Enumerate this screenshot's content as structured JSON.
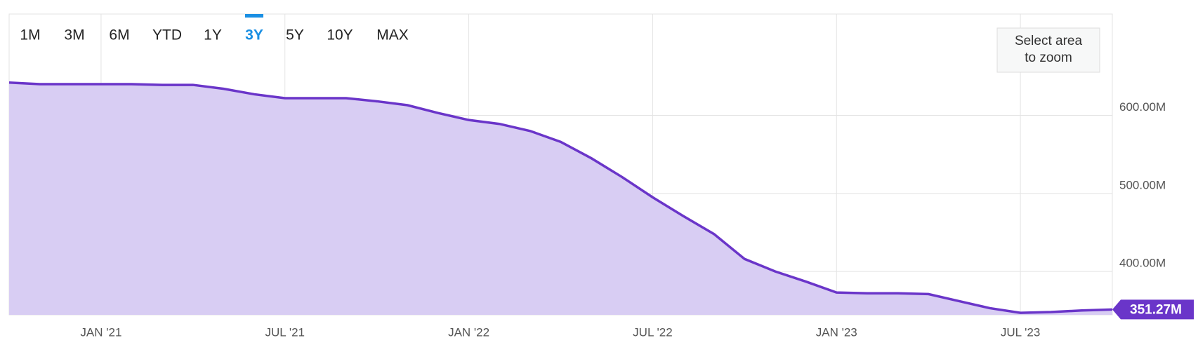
{
  "controls": {
    "range_buttons": [
      "1M",
      "3M",
      "6M",
      "YTD",
      "1Y",
      "3Y",
      "5Y",
      "10Y",
      "MAX"
    ],
    "selected_range": "3Y",
    "zoom_hint": [
      "Select area",
      "to zoom"
    ]
  },
  "chart_data": {
    "type": "area",
    "color": "#6a35c9",
    "fill": "#d8cdf3",
    "x": [
      "2020-10",
      "2020-11",
      "2020-12",
      "2021-01",
      "2021-02",
      "2021-03",
      "2021-04",
      "2021-05",
      "2021-06",
      "2021-07",
      "2021-08",
      "2021-09",
      "2021-10",
      "2021-11",
      "2021-12",
      "2022-01",
      "2022-02",
      "2022-03",
      "2022-04",
      "2022-05",
      "2022-06",
      "2022-07",
      "2022-08",
      "2022-09",
      "2022-10",
      "2022-11",
      "2022-12",
      "2023-01",
      "2023-02",
      "2023-03",
      "2023-04",
      "2023-05",
      "2023-06",
      "2023-07",
      "2023-08",
      "2023-09",
      "2023-10"
    ],
    "values": [
      642,
      640,
      640,
      640,
      640,
      639,
      639,
      634,
      627,
      622,
      622,
      622,
      618,
      613,
      603,
      594,
      589,
      580,
      566,
      545,
      521,
      495,
      471,
      448,
      416,
      400,
      387,
      373,
      372,
      372,
      371,
      362,
      353,
      347,
      348,
      350,
      351.27
    ],
    "xlim": [
      "2020-10",
      "2023-10"
    ],
    "xticks": [
      {
        "value": "2021-01",
        "label": "JAN '21"
      },
      {
        "value": "2021-07",
        "label": "JUL '21"
      },
      {
        "value": "2022-01",
        "label": "JAN '22"
      },
      {
        "value": "2022-07",
        "label": "JUL '22"
      },
      {
        "value": "2023-01",
        "label": "JAN '23"
      },
      {
        "value": "2023-07",
        "label": "JUL '23"
      }
    ],
    "ylim": [
      344.4,
      729.8
    ],
    "yticks": [
      {
        "value": 400,
        "label": "400.00M"
      },
      {
        "value": 500,
        "label": "500.00M"
      },
      {
        "value": 600,
        "label": "600.00M"
      }
    ],
    "current_value": {
      "value": 351.27,
      "label": "351.27M"
    },
    "grid": true
  }
}
